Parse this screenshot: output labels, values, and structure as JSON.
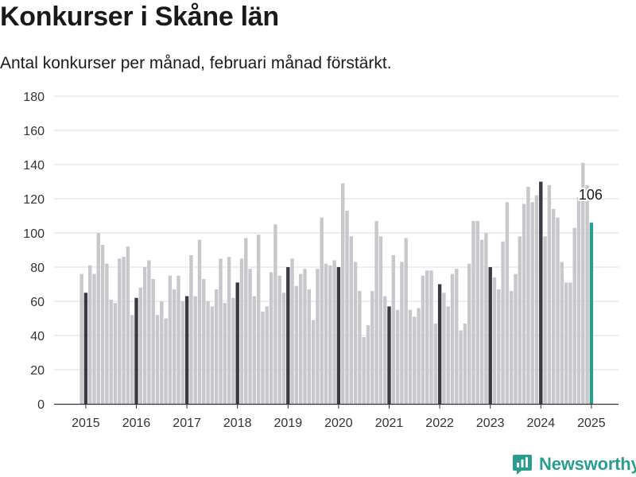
{
  "title": "Konkurser i Skåne län",
  "subtitle": "Antal konkurser per månad, februari månad förstärkt.",
  "brand": {
    "name": "Newsworthy",
    "color": "#2a9d8f",
    "icon": "newsworthy-logo-icon"
  },
  "colors": {
    "bar": "#c8c8cc",
    "highlight": "#3a3a44",
    "latest": "#2a9d8f",
    "grid": "#dddddd"
  },
  "chart_data": {
    "type": "bar",
    "title": "Konkurser i Skåne län",
    "subtitle": "Antal konkurser per månad, februari månad förstärkt.",
    "xlabel": "",
    "ylabel": "",
    "ylim": [
      0,
      180
    ],
    "yticks": [
      0,
      20,
      40,
      60,
      80,
      100,
      120,
      140,
      160,
      180
    ],
    "xticks": [
      "2015",
      "2016",
      "2017",
      "2018",
      "2019",
      "2020",
      "2021",
      "2022",
      "2023",
      "2024",
      "2025"
    ],
    "grid": true,
    "highlight_month": "februari",
    "start": "2015-01",
    "end": "2025-02",
    "values": [
      76,
      65,
      81,
      76,
      100,
      93,
      82,
      61,
      59,
      85,
      86,
      92,
      52,
      62,
      68,
      80,
      84,
      73,
      52,
      60,
      50,
      75,
      67,
      75,
      60,
      63,
      87,
      63,
      96,
      73,
      60,
      57,
      67,
      85,
      59,
      86,
      62,
      71,
      85,
      97,
      79,
      63,
      99,
      54,
      57,
      77,
      105,
      75,
      65,
      80,
      85,
      69,
      76,
      79,
      67,
      49,
      79,
      109,
      82,
      81,
      84,
      80,
      129,
      113,
      98,
      83,
      66,
      39,
      46,
      66,
      107,
      98,
      63,
      57,
      87,
      55,
      83,
      97,
      55,
      51,
      56,
      75,
      78,
      78,
      47,
      70,
      65,
      57,
      76,
      79,
      43,
      47,
      82,
      107,
      107,
      96,
      100,
      80,
      74,
      67,
      95,
      118,
      66,
      76,
      98,
      117,
      127,
      118,
      122,
      130,
      98,
      128,
      114,
      109,
      83,
      71,
      71,
      103,
      121,
      141,
      128,
      106
    ],
    "annotations": [
      {
        "month": "2025-02",
        "label": "106"
      }
    ]
  }
}
